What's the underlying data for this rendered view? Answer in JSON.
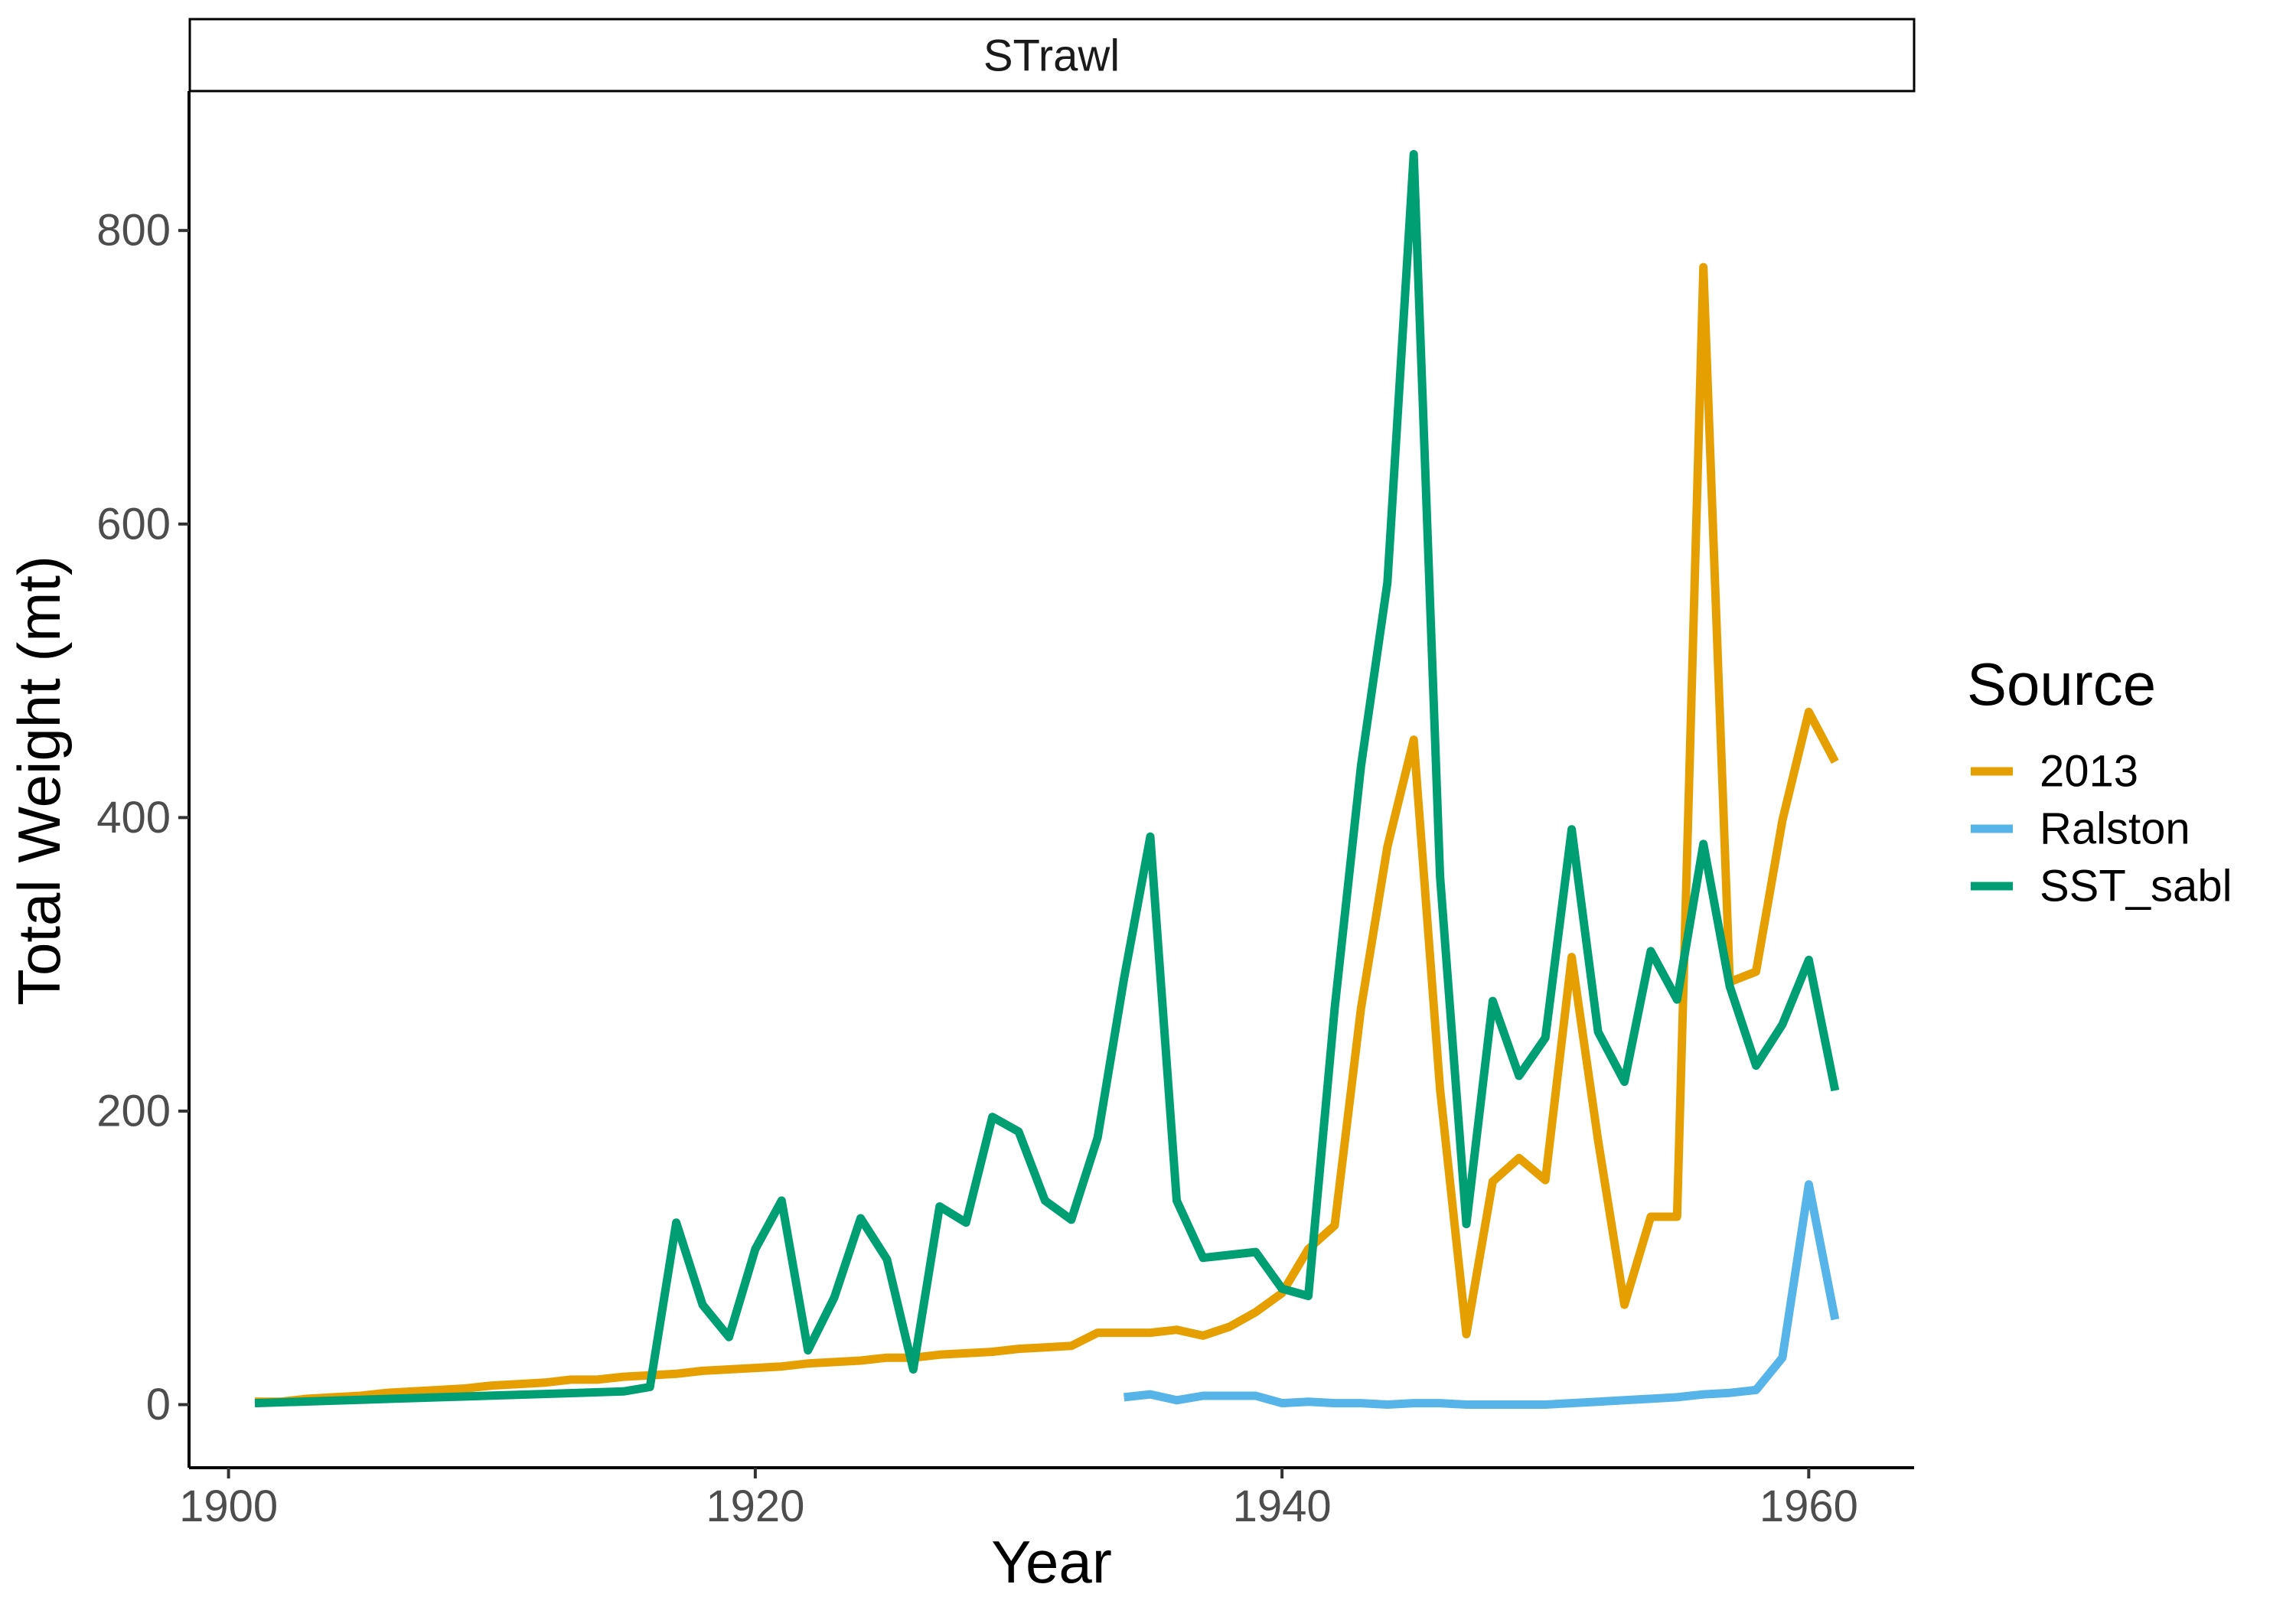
{
  "chart_data": {
    "type": "line",
    "facet": "STrawl",
    "xlabel": "Year",
    "ylabel": "Total Weight (mt)",
    "xlim": [
      1898.5,
      1964
    ],
    "ylim": [
      -43,
      895
    ],
    "xticks": [
      1900,
      1920,
      1940,
      1960
    ],
    "yticks": [
      0,
      200,
      400,
      600,
      800
    ],
    "grid": false,
    "legend": {
      "title": "Source",
      "position": "right"
    },
    "series": [
      {
        "name": "2013",
        "color": "#E69F00",
        "x": [
          1901,
          1902,
          1903,
          1904,
          1905,
          1906,
          1907,
          1908,
          1909,
          1910,
          1911,
          1912,
          1913,
          1914,
          1915,
          1916,
          1917,
          1918,
          1919,
          1920,
          1921,
          1922,
          1923,
          1924,
          1925,
          1926,
          1927,
          1928,
          1929,
          1930,
          1931,
          1932,
          1933,
          1934,
          1935,
          1936,
          1937,
          1938,
          1939,
          1940,
          1941,
          1942,
          1943,
          1944,
          1945,
          1946,
          1947,
          1948,
          1949,
          1950,
          1951,
          1952,
          1953,
          1954,
          1955,
          1956,
          1957,
          1958,
          1959,
          1960,
          1961
        ],
        "values": [
          2,
          2,
          4,
          5,
          6,
          8,
          9,
          10,
          11,
          13,
          14,
          15,
          17,
          17,
          19,
          20,
          21,
          23,
          24,
          25,
          26,
          28,
          29,
          30,
          32,
          32,
          34,
          35,
          36,
          38,
          39,
          40,
          49,
          49,
          49,
          51,
          47,
          53,
          63,
          76,
          106,
          122,
          270,
          380,
          453,
          215,
          48,
          152,
          168,
          153,
          305,
          180,
          68,
          128,
          128,
          775,
          288,
          295,
          398,
          472,
          438
        ]
      },
      {
        "name": "Ralston",
        "color": "#56B4E9",
        "x": [
          1934,
          1935,
          1936,
          1937,
          1938,
          1939,
          1940,
          1941,
          1942,
          1943,
          1944,
          1945,
          1946,
          1947,
          1948,
          1949,
          1950,
          1951,
          1952,
          1953,
          1954,
          1955,
          1956,
          1957,
          1958,
          1959,
          1960,
          1961
        ],
        "values": [
          5,
          7,
          3,
          6,
          6,
          6,
          1,
          2,
          1,
          1,
          0,
          1,
          1,
          0,
          0,
          0,
          0,
          1,
          2,
          3,
          4,
          5,
          7,
          8,
          10,
          32,
          150,
          58
        ]
      },
      {
        "name": "SST_sabl",
        "color": "#009E73",
        "x": [
          1901,
          1915,
          1916,
          1917,
          1918,
          1919,
          1920,
          1921,
          1922,
          1923,
          1924,
          1925,
          1926,
          1927,
          1928,
          1929,
          1930,
          1931,
          1932,
          1933,
          1934,
          1935,
          1936,
          1937,
          1938,
          1939,
          1940,
          1941,
          1942,
          1943,
          1944,
          1945,
          1946,
          1947,
          1948,
          1949,
          1950,
          1951,
          1952,
          1953,
          1954,
          1955,
          1956,
          1957,
          1958,
          1959,
          1960,
          1961
        ],
        "values": [
          1,
          9,
          12,
          124,
          68,
          46,
          106,
          139,
          37,
          73,
          127,
          99,
          24,
          135,
          124,
          196,
          186,
          139,
          126,
          182,
          290,
          387,
          139,
          100,
          102,
          104,
          79,
          74,
          270,
          435,
          560,
          852,
          360,
          123,
          275,
          224,
          250,
          392,
          254,
          220,
          309,
          276,
          382,
          285,
          231,
          259,
          303,
          214
        ]
      }
    ]
  }
}
